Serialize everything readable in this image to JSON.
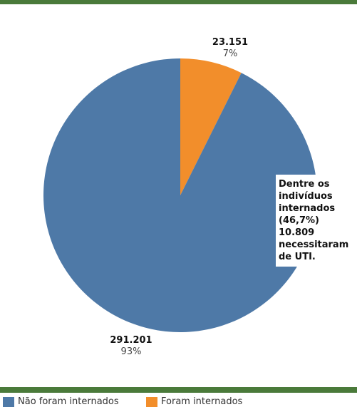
{
  "colors": {
    "frame_bar": "#4a7a3a",
    "nao_internados": "#4e79a7",
    "internados": "#f28e2b"
  },
  "chart_data": {
    "type": "pie",
    "slices": [
      {
        "name": "Foram internados",
        "value": 23151,
        "value_label": "23.151",
        "percent_label": "7%",
        "color": "#f28e2b"
      },
      {
        "name": "Não foram internados",
        "value": 291201,
        "value_label": "291.201",
        "percent_label": "93%",
        "color": "#4e79a7"
      }
    ],
    "annotation": "Dentre os indivíduos internados (46,7%) 10.809 necessitaram de UTI.",
    "legend": [
      "Não foram internados",
      "Foram internados"
    ],
    "legend_position": "bottom"
  }
}
